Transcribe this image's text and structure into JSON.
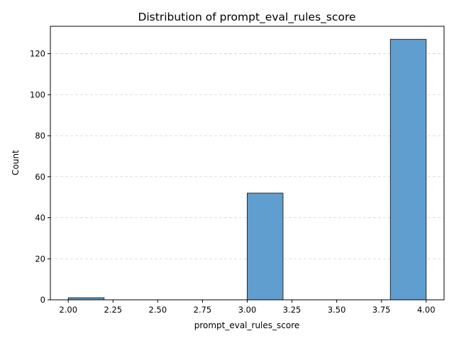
{
  "chart_data": {
    "type": "bar",
    "title": "Distribution of prompt_eval_rules_score",
    "xlabel": "prompt_eval_rules_score",
    "ylabel": "Count",
    "xlim": [
      1.9,
      4.1
    ],
    "ylim": [
      0,
      133.35
    ],
    "x_ticks": [
      2.0,
      2.25,
      2.5,
      2.75,
      3.0,
      3.25,
      3.5,
      3.75,
      4.0
    ],
    "x_tick_labels": [
      "2.00",
      "2.25",
      "2.50",
      "2.75",
      "3.00",
      "3.25",
      "3.50",
      "3.75",
      "4.00"
    ],
    "y_ticks": [
      0,
      20,
      40,
      60,
      80,
      100,
      120
    ],
    "y_tick_labels": [
      "0",
      "20",
      "40",
      "60",
      "80",
      "100",
      "120"
    ],
    "bins": [
      {
        "x0": 2.0,
        "x1": 2.2,
        "count": 1
      },
      {
        "x0": 2.2,
        "x1": 2.4,
        "count": 0
      },
      {
        "x0": 2.4,
        "x1": 2.6,
        "count": 0
      },
      {
        "x0": 2.6,
        "x1": 2.8,
        "count": 0
      },
      {
        "x0": 2.8,
        "x1": 3.0,
        "count": 0
      },
      {
        "x0": 3.0,
        "x1": 3.2,
        "count": 52
      },
      {
        "x0": 3.2,
        "x1": 3.4,
        "count": 0
      },
      {
        "x0": 3.4,
        "x1": 3.6,
        "count": 0
      },
      {
        "x0": 3.6,
        "x1": 3.8,
        "count": 0
      },
      {
        "x0": 3.8,
        "x1": 4.0,
        "count": 127
      }
    ],
    "grid": {
      "y": true,
      "x": false,
      "style": "dashed"
    },
    "colors": {
      "bar_fill": "#5f9ecf",
      "bar_edge": "#2b2b2b",
      "grid": "#d3d3d3",
      "axis": "#000000"
    }
  }
}
